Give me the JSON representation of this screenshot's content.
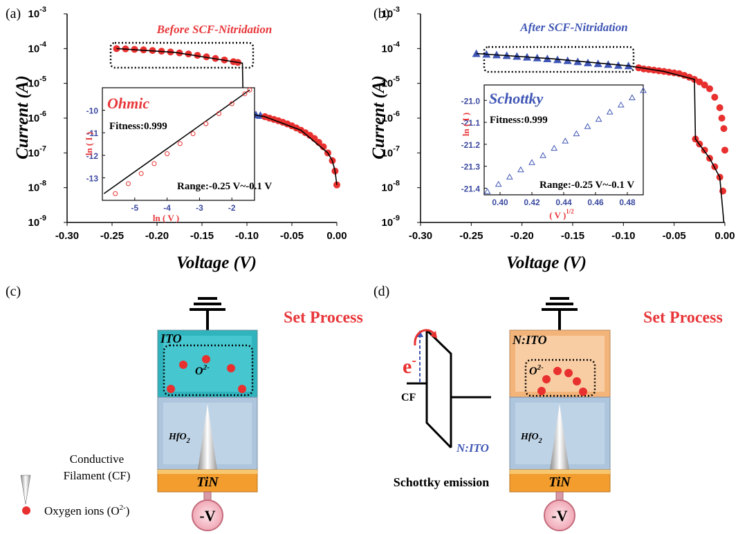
{
  "chart_data": [
    {
      "type": "scatter",
      "panel": "(a)",
      "title": "Before SCF-Nitridation",
      "title_color": "#e8373a",
      "frame": "axes",
      "xlabel": "Voltage (V)",
      "ylabel": "Current (A)",
      "xlim": [
        -0.3,
        0
      ],
      "xticks": [
        {
          "value": -0.3,
          "label": "-0.30"
        },
        {
          "value": -0.25,
          "label": "-0.25"
        },
        {
          "value": -0.2,
          "label": "-0.20"
        },
        {
          "value": -0.15,
          "label": "-0.15"
        },
        {
          "value": -0.1,
          "label": "-0.10"
        },
        {
          "value": -0.05,
          "label": "-0.05"
        },
        {
          "value": 0,
          "label": "0.00"
        }
      ],
      "ylim": [
        1e-09,
        0.001
      ],
      "ylog": true,
      "yticks": [
        {
          "value": 0.001,
          "label": "10",
          "exponent": "-3"
        },
        {
          "value": 0.0001,
          "label": "10",
          "exponent": "-4"
        },
        {
          "value": 1e-05,
          "label": "10",
          "exponent": "-5"
        },
        {
          "value": 1e-06,
          "label": "10",
          "exponent": "-6"
        },
        {
          "value": 1e-07,
          "label": "10",
          "exponent": "-7"
        },
        {
          "value": 1e-08,
          "label": "10",
          "exponent": "-8"
        },
        {
          "value": 1e-09,
          "label": "10",
          "exponent": "-9"
        }
      ],
      "series": [
        {
          "marker": "circle",
          "color": "#e8302f",
          "x": [
            -0.245,
            -0.235,
            -0.225,
            -0.215,
            -0.205,
            -0.195,
            -0.185,
            -0.175,
            -0.165,
            -0.155,
            -0.145,
            -0.135,
            -0.125,
            -0.115,
            -0.11
          ],
          "values": [
            0.0001,
            9.8e-05,
            9.5e-05,
            9.2e-05,
            8.8e-05,
            8.4e-05,
            8e-05,
            7.5e-05,
            7e-05,
            6.4e-05,
            5.8e-05,
            5.2e-05,
            4.7e-05,
            4.2e-05,
            4e-05
          ]
        },
        {
          "marker": "triangle",
          "color": "#3f56b5",
          "x": [
            -0.105,
            -0.1,
            -0.095,
            -0.09,
            -0.085
          ],
          "values": [
            1.4e-06,
            1.35e-06,
            1.3e-06,
            1.25e-06,
            1.2e-06
          ]
        },
        {
          "marker": "circle",
          "color": "#e8302f",
          "x": [
            -0.08,
            -0.075,
            -0.07,
            -0.065,
            -0.06,
            -0.055,
            -0.05,
            -0.045,
            -0.04,
            -0.035,
            -0.03,
            -0.025,
            -0.02,
            -0.015,
            -0.01,
            -0.005,
            -0.002,
            0
          ],
          "values": [
            1.1e-06,
            1e-06,
            9.2e-07,
            8.4e-07,
            7.6e-07,
            6.8e-07,
            6e-07,
            5.2e-07,
            4.5e-07,
            3.8e-07,
            3.2e-07,
            2.6e-07,
            2e-07,
            1.5e-07,
            1e-07,
            6e-08,
            3e-08,
            1.2e-08
          ]
        },
        {
          "marker": "line",
          "color": "#000000",
          "x": [
            -0.245,
            -0.18,
            -0.11,
            -0.105,
            -0.104,
            -0.08,
            -0.04,
            -0.01,
            -0.005,
            -0.002,
            0
          ],
          "values": [
            0.0001,
            7.8e-05,
            4e-05,
            3.8e-05,
            1.4e-06,
            1.1e-06,
            4.5e-07,
            1e-07,
            6e-08,
            3e-08,
            1.2e-08
          ]
        }
      ]
    },
    {
      "type": "scatter",
      "panel": "(b)",
      "title": "After SCF-Nitridation",
      "title_color": "#3f56b5",
      "frame": "axes",
      "xlabel": "Voltage (V)",
      "ylabel": "Current (A)",
      "xlim": [
        -0.3,
        0
      ],
      "xticks": [
        {
          "value": -0.3,
          "label": "-0.30"
        },
        {
          "value": -0.25,
          "label": "-0.25"
        },
        {
          "value": -0.2,
          "label": "-0.20"
        },
        {
          "value": -0.15,
          "label": "-0.15"
        },
        {
          "value": -0.1,
          "label": "-0.10"
        },
        {
          "value": -0.05,
          "label": "-0.05"
        },
        {
          "value": 0,
          "label": "0.00"
        }
      ],
      "ylim": [
        1e-09,
        0.001
      ],
      "ylog": true,
      "yticks": [
        {
          "value": 0.001,
          "label": "10",
          "exponent": "-3"
        },
        {
          "value": 0.0001,
          "label": "10",
          "exponent": "-4"
        },
        {
          "value": 1e-05,
          "label": "10",
          "exponent": "-5"
        },
        {
          "value": 1e-06,
          "label": "10",
          "exponent": "-6"
        },
        {
          "value": 1e-07,
          "label": "10",
          "exponent": "-7"
        },
        {
          "value": 1e-08,
          "label": "10",
          "exponent": "-8"
        },
        {
          "value": 1e-09,
          "label": "10",
          "exponent": "-9"
        }
      ],
      "series": [
        {
          "marker": "triangle",
          "color": "#3f56b5",
          "x": [
            -0.245,
            -0.235,
            -0.225,
            -0.215,
            -0.205,
            -0.195,
            -0.185,
            -0.175,
            -0.165,
            -0.155,
            -0.145,
            -0.135,
            -0.125,
            -0.115,
            -0.105,
            -0.095
          ],
          "values": [
            7.2e-05,
            6.9e-05,
            6.6e-05,
            6.3e-05,
            6e-05,
            5.7e-05,
            5.4e-05,
            5.1e-05,
            4.8e-05,
            4.5e-05,
            4.2e-05,
            3.9e-05,
            3.7e-05,
            3.5e-05,
            3.3e-05,
            3.2e-05
          ]
        },
        {
          "marker": "circle",
          "color": "#e8302f",
          "x": [
            -0.085,
            -0.08,
            -0.075,
            -0.07,
            -0.065,
            -0.06,
            -0.055,
            -0.05,
            -0.045,
            -0.04,
            -0.035,
            -0.03,
            -0.025,
            -0.02,
            -0.015,
            -0.01,
            -0.005,
            -0.003,
            -0.001,
            0
          ],
          "values": [
            2.8e-05,
            2.6e-05,
            2.5e-05,
            2.4e-05,
            2.3e-05,
            2.2e-05,
            2.1e-05,
            2e-05,
            1.9e-05,
            1.7e-05,
            1.5e-05,
            1.3e-05,
            1.1e-05,
            9e-06,
            7e-06,
            4e-06,
            2e-06,
            1e-06,
            5e-07,
            1.2e-07
          ]
        },
        {
          "marker": "circle",
          "color": "#e8302f",
          "x": [
            -0.029,
            -0.025,
            -0.02,
            -0.015,
            -0.01,
            -0.005,
            -0.002
          ],
          "values": [
            2.5e-07,
            1.8e-07,
            1.2e-07,
            7e-08,
            4e-08,
            2e-08,
            8e-09
          ]
        },
        {
          "marker": "line",
          "color": "#000000",
          "x": [
            -0.245,
            -0.17,
            -0.095,
            -0.06,
            -0.03,
            -0.029,
            -0.015,
            -0.005,
            -0.001
          ],
          "values": [
            7.2e-05,
            5.1e-05,
            3.2e-05,
            2.2e-05,
            1.3e-05,
            2.5e-07,
            7e-08,
            2e-08,
            1e-09
          ]
        }
      ]
    },
    {
      "type": "scatter",
      "frame": "box",
      "model": "Ohmic",
      "model_color": "#e8373a",
      "fitness": "Fitness:0.999",
      "range": "Range:-0.25 V~-0.1 V",
      "xlabel": "ln ( V )",
      "ylabel": "ln ( I )",
      "xlim": [
        -6.0,
        -1.3
      ],
      "xticks": [
        -5,
        -4,
        -3,
        -2
      ],
      "ylim": [
        -14,
        -9
      ],
      "yticks": [
        -10,
        -11,
        -12,
        -13
      ],
      "series": [
        {
          "marker": "line",
          "color": "#000000",
          "x": [
            -5.95,
            -1.45
          ],
          "values": [
            -13.7,
            -9.1
          ]
        },
        {
          "marker": "circle",
          "hollow": true,
          "color": "#e8302f",
          "x": [
            -5.6,
            -5.2,
            -4.8,
            -4.4,
            -4.0,
            -3.6,
            -3.2,
            -2.8,
            -2.4,
            -2.0,
            -1.6,
            -1.45
          ],
          "values": [
            -13.7,
            -13.26,
            -12.81,
            -12.37,
            -11.93,
            -11.48,
            -11.04,
            -10.6,
            -10.15,
            -9.71,
            -9.27,
            -9.1
          ]
        }
      ]
    },
    {
      "type": "scatter",
      "frame": "box",
      "model": "Schottky",
      "model_color": "#3f56b5",
      "fitness": "Fitness:0.999",
      "range": "Range:-0.25 V~-0.1 V",
      "xlabel": "( V )",
      "xlabel_exponent": "1/2",
      "ylabel": "ln ( I )",
      "xlim": [
        0.39,
        0.49
      ],
      "xticks": [
        {
          "value": 0.4,
          "label": "0.40"
        },
        {
          "value": 0.42,
          "label": "0.42"
        },
        {
          "value": 0.44,
          "label": "0.44"
        },
        {
          "value": 0.46,
          "label": "0.46"
        },
        {
          "value": 0.48,
          "label": "0.48"
        }
      ],
      "ylim": [
        -21.43,
        -20.93
      ],
      "yticks": [
        {
          "value": -21.0,
          "label": "-21.0"
        },
        -21.1,
        -21.2,
        -21.3,
        -21.4
      ],
      "series": [
        {
          "marker": "triangle",
          "hollow": true,
          "color": "#3f56b5",
          "x": [
            0.392,
            0.399,
            0.406,
            0.413,
            0.42,
            0.427,
            0.434,
            0.441,
            0.448,
            0.455,
            0.462,
            0.469,
            0.476,
            0.483,
            0.49
          ],
          "values": [
            -21.415,
            -21.382,
            -21.349,
            -21.316,
            -21.283,
            -21.251,
            -21.218,
            -21.185,
            -21.152,
            -21.119,
            -21.086,
            -21.053,
            -21.021,
            -20.988,
            -20.955
          ]
        }
      ]
    }
  ],
  "diagram_c": {
    "panel": "(c)",
    "process": "Set Process",
    "top_layer": "ITO",
    "ion": {
      "text": "O",
      "sup": "2-"
    },
    "middle_layer": {
      "text": "HfO",
      "sub": "2"
    },
    "bottom_layer": "TiN",
    "bias": "-V"
  },
  "diagram_d": {
    "panel": "(d)",
    "process": "Set Process",
    "top_layer": "N:ITO",
    "ion": {
      "text": "O",
      "sup": "2-"
    },
    "middle_layer": {
      "text": "HfO",
      "sub": "2"
    },
    "bottom_layer": "TiN",
    "bias": "-V",
    "band": {
      "electron": {
        "text": "e",
        "sup": "-"
      },
      "metal": "CF",
      "oxide": "N:ITO",
      "mechanism": "Schottky emission"
    }
  },
  "legend": {
    "filament": [
      "Conductive",
      "Filament (CF)"
    ],
    "ion": {
      "text": "Oxygen ions (O",
      "sup": "2-",
      "tail": ")"
    }
  }
}
